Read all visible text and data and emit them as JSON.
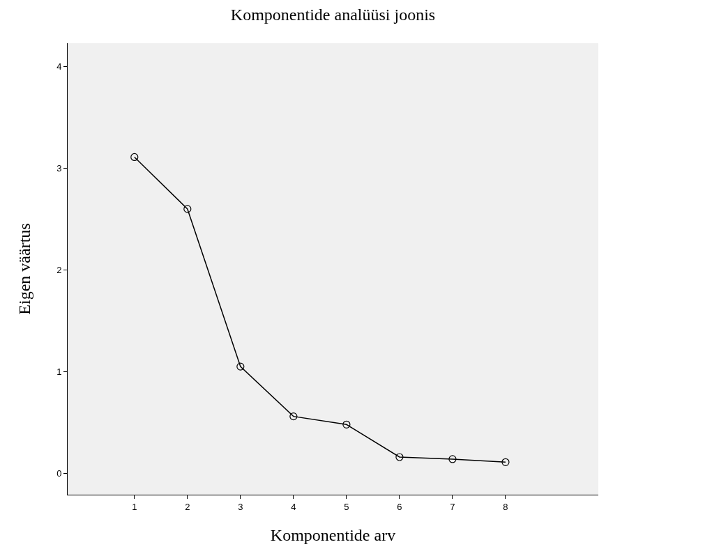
{
  "chart_data": {
    "type": "line",
    "title": "Komponentide analüüsi joonis",
    "xlabel": "Komponentide arv",
    "ylabel": "Eigen väärtus",
    "x": [
      1,
      2,
      3,
      4,
      5,
      6,
      7,
      8
    ],
    "series": [
      {
        "color": "#000000",
        "values": [
          3.11,
          2.6,
          1.05,
          0.56,
          0.48,
          0.16,
          0.14,
          0.11
        ]
      }
    ],
    "xlim": [
      -0.26,
      9.75
    ],
    "xticks": [
      1,
      2,
      3,
      4,
      5,
      6,
      7,
      8
    ],
    "ylim": [
      -0.21,
      4.23
    ],
    "yticks": [
      0,
      1,
      2,
      3,
      4
    ],
    "marker": "circle",
    "line_style": "solid"
  }
}
